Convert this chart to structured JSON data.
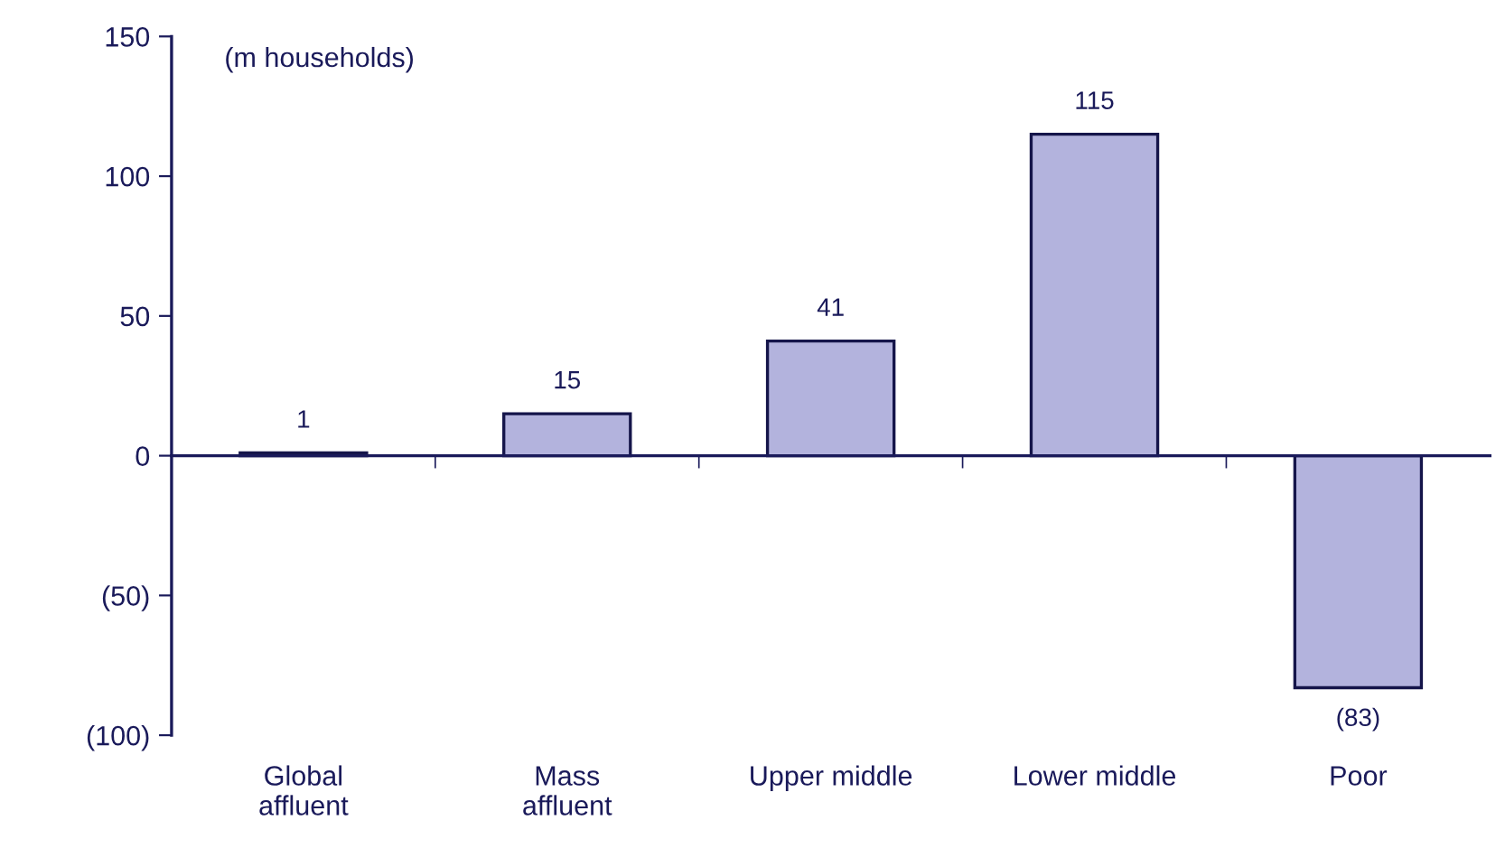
{
  "chart_data": {
    "type": "bar",
    "categories": [
      "Global\naffluent",
      "Mass\naffluent",
      "Upper middle",
      "Lower middle",
      "Poor"
    ],
    "values": [
      1,
      15,
      41,
      115,
      -83
    ],
    "value_labels": [
      "1",
      "15",
      "41",
      "115",
      "(83)"
    ],
    "color": "#b3b3dd",
    "ylim": [
      -100,
      150
    ],
    "yticks": [
      {
        "value": -100,
        "label": "(100)"
      },
      {
        "value": -50,
        "label": "(50)"
      },
      0,
      50,
      100,
      150
    ],
    "annotations": [
      "(m households)"
    ],
    "grid": false,
    "legend": false
  }
}
